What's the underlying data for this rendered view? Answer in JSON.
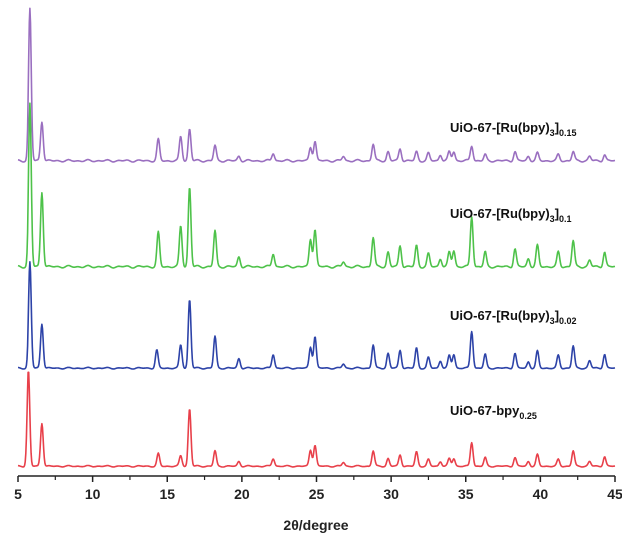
{
  "chart_data": {
    "type": "line",
    "xlabel": "2θ/degree",
    "ylabel": "",
    "xlim": [
      5,
      45
    ],
    "xticks": [
      5,
      10,
      15,
      20,
      25,
      30,
      35,
      40,
      45
    ],
    "grid": false,
    "legend": "none",
    "series": [
      {
        "name": "UiO-67-bpy",
        "name_subscript": "0.25",
        "color": "#e8404a",
        "baseline": 0,
        "peaks": [
          [
            5.7,
            100
          ],
          [
            6.6,
            45
          ],
          [
            14.4,
            13
          ],
          [
            15.9,
            11
          ],
          [
            16.5,
            60
          ],
          [
            18.2,
            16
          ],
          [
            19.8,
            5
          ],
          [
            22.1,
            8
          ],
          [
            24.6,
            17
          ],
          [
            24.9,
            22
          ],
          [
            26.8,
            4
          ],
          [
            28.8,
            16
          ],
          [
            29.8,
            8
          ],
          [
            30.6,
            12
          ],
          [
            31.7,
            15
          ],
          [
            32.5,
            7
          ],
          [
            33.3,
            5
          ],
          [
            33.9,
            8
          ],
          [
            34.2,
            8
          ],
          [
            35.4,
            25
          ],
          [
            36.3,
            9
          ],
          [
            38.3,
            9
          ],
          [
            39.2,
            5
          ],
          [
            39.8,
            12
          ],
          [
            41.2,
            7
          ],
          [
            42.2,
            16
          ],
          [
            43.3,
            5
          ],
          [
            44.3,
            10
          ]
        ]
      },
      {
        "name": "UiO-67-[Ru(bpy)",
        "name_subscript_inner": "3",
        "name_mid": "]",
        "name_subscript": "0.02",
        "color": "#2d43a8",
        "baseline": 0,
        "peaks": [
          [
            5.8,
            100
          ],
          [
            6.6,
            42
          ],
          [
            14.3,
            17
          ],
          [
            15.9,
            22
          ],
          [
            16.5,
            65
          ],
          [
            18.2,
            30
          ],
          [
            19.8,
            9
          ],
          [
            22.1,
            13
          ],
          [
            24.6,
            20
          ],
          [
            24.9,
            30
          ],
          [
            26.8,
            4
          ],
          [
            28.8,
            22
          ],
          [
            29.8,
            14
          ],
          [
            30.6,
            17
          ],
          [
            31.7,
            19
          ],
          [
            32.5,
            10
          ],
          [
            33.3,
            7
          ],
          [
            33.9,
            12
          ],
          [
            34.2,
            13
          ],
          [
            35.4,
            35
          ],
          [
            36.3,
            13
          ],
          [
            38.3,
            14
          ],
          [
            39.2,
            6
          ],
          [
            39.8,
            16
          ],
          [
            41.2,
            12
          ],
          [
            42.2,
            21
          ],
          [
            43.3,
            7
          ],
          [
            44.3,
            13
          ]
        ]
      },
      {
        "name": "UiO-67-[Ru(bpy)",
        "name_subscript_inner": "3",
        "name_mid": "]",
        "name_subscript": "0.1",
        "color": "#4ec24a",
        "baseline": 0,
        "peaks": [
          [
            5.8,
            100
          ],
          [
            6.6,
            46
          ],
          [
            14.4,
            21
          ],
          [
            15.9,
            25
          ],
          [
            16.5,
            49
          ],
          [
            18.2,
            22
          ],
          [
            19.8,
            6
          ],
          [
            22.1,
            8
          ],
          [
            24.6,
            17
          ],
          [
            24.9,
            23
          ],
          [
            26.8,
            3
          ],
          [
            28.8,
            18
          ],
          [
            29.8,
            9
          ],
          [
            30.6,
            13
          ],
          [
            31.7,
            13
          ],
          [
            32.5,
            8
          ],
          [
            33.3,
            5
          ],
          [
            33.9,
            9
          ],
          [
            34.2,
            10
          ],
          [
            35.4,
            31
          ],
          [
            36.3,
            9
          ],
          [
            38.3,
            11
          ],
          [
            39.2,
            5
          ],
          [
            39.8,
            13
          ],
          [
            41.2,
            9
          ],
          [
            42.2,
            16
          ],
          [
            43.3,
            4
          ],
          [
            44.3,
            9
          ]
        ]
      },
      {
        "name": "UiO-67-[Ru(bpy)",
        "name_subscript_inner": "3",
        "name_mid": "]",
        "name_subscript": "0.15",
        "color": "#9a6fc0",
        "baseline": 0,
        "peaks": [
          [
            5.8,
            100
          ],
          [
            6.6,
            26
          ],
          [
            14.4,
            14
          ],
          [
            15.9,
            16
          ],
          [
            16.5,
            21
          ],
          [
            18.2,
            10
          ],
          [
            19.8,
            3
          ],
          [
            22.1,
            5
          ],
          [
            24.6,
            9
          ],
          [
            24.9,
            13
          ],
          [
            26.8,
            3
          ],
          [
            28.8,
            11
          ],
          [
            29.8,
            6
          ],
          [
            30.6,
            8
          ],
          [
            31.7,
            6
          ],
          [
            32.5,
            5
          ],
          [
            33.3,
            4
          ],
          [
            33.9,
            6
          ],
          [
            34.2,
            6
          ],
          [
            35.4,
            10
          ],
          [
            36.3,
            4
          ],
          [
            38.3,
            6
          ],
          [
            39.2,
            3
          ],
          [
            39.8,
            5
          ],
          [
            41.2,
            4
          ],
          [
            42.2,
            6
          ],
          [
            43.3,
            3
          ],
          [
            44.3,
            4
          ]
        ]
      }
    ]
  }
}
